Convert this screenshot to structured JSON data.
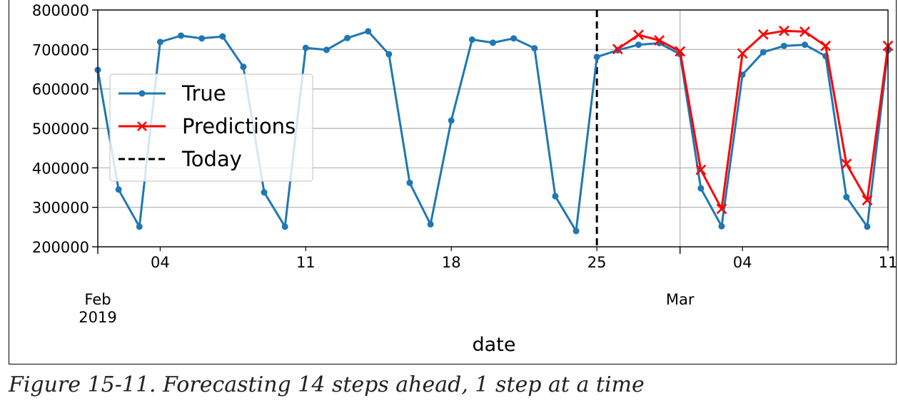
{
  "chart_data": {
    "type": "line",
    "xlabel": "date",
    "x_day_ticks": [
      "04",
      "11",
      "18",
      "25",
      "04",
      "11"
    ],
    "x_month_labels": [
      {
        "month": "Feb",
        "year": "2019"
      },
      {
        "month": "Mar",
        "year": ""
      }
    ],
    "ylim": [
      200000,
      800000
    ],
    "xlim": [
      "2019-02-01",
      "2019-03-11"
    ],
    "y_ticks": [
      200000,
      300000,
      400000,
      500000,
      600000,
      700000,
      800000
    ],
    "y_tick_labels": [
      "200000",
      "300000",
      "400000",
      "500000",
      "600000",
      "700000",
      "800000"
    ],
    "grid": true,
    "legend_position": "upper-left",
    "today": "2019-02-25",
    "series": [
      {
        "name": "True",
        "color": "#1f77b4",
        "marker": "dot",
        "x": [
          "2019-02-01",
          "2019-02-02",
          "2019-02-03",
          "2019-02-04",
          "2019-02-05",
          "2019-02-06",
          "2019-02-07",
          "2019-02-08",
          "2019-02-09",
          "2019-02-10",
          "2019-02-11",
          "2019-02-12",
          "2019-02-13",
          "2019-02-14",
          "2019-02-15",
          "2019-02-16",
          "2019-02-17",
          "2019-02-18",
          "2019-02-19",
          "2019-02-20",
          "2019-02-21",
          "2019-02-22",
          "2019-02-23",
          "2019-02-24",
          "2019-02-25",
          "2019-02-26",
          "2019-02-27",
          "2019-02-28",
          "2019-03-01",
          "2019-03-02",
          "2019-03-03",
          "2019-03-04",
          "2019-03-05",
          "2019-03-06",
          "2019-03-07",
          "2019-03-08",
          "2019-03-09",
          "2019-03-10",
          "2019-03-11"
        ],
        "values": [
          648000,
          345000,
          251000,
          719000,
          735000,
          728000,
          733000,
          656000,
          338000,
          251000,
          704000,
          699000,
          729000,
          746000,
          688000,
          362000,
          257000,
          520000,
          725000,
          717000,
          728000,
          703000,
          328000,
          240000,
          681000,
          698000,
          712000,
          716000,
          688000,
          348000,
          252000,
          636000,
          693000,
          709000,
          712000,
          683000,
          326000,
          251000,
          698000
        ]
      },
      {
        "name": "Predictions",
        "color": "#ff0000",
        "marker": "x",
        "x": [
          "2019-02-26",
          "2019-02-27",
          "2019-02-28",
          "2019-03-01",
          "2019-03-02",
          "2019-03-03",
          "2019-03-04",
          "2019-03-05",
          "2019-03-06",
          "2019-03-07",
          "2019-03-08",
          "2019-03-09",
          "2019-03-10",
          "2019-03-11"
        ],
        "values": [
          701000,
          737000,
          723000,
          695000,
          395000,
          296000,
          690000,
          738000,
          747000,
          745000,
          709000,
          410000,
          318000,
          709000
        ]
      },
      {
        "name": "Today",
        "color": "#000000",
        "style": "dashed"
      }
    ]
  },
  "caption": "Figure 15-11. Forecasting 14 steps ahead, 1 step at a time"
}
